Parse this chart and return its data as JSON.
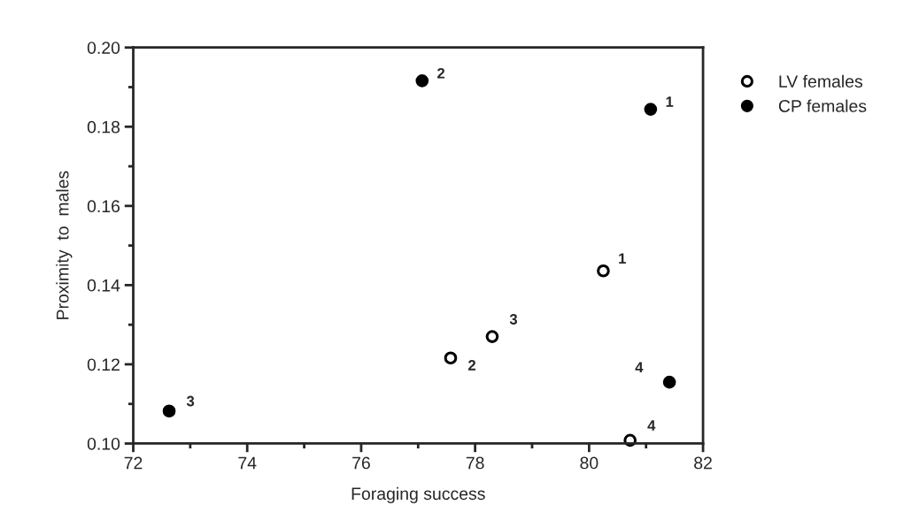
{
  "chart_data": {
    "type": "scatter",
    "xlabel": "Foraging success",
    "ylabel": "Proximity  to  males",
    "xlim": [
      72,
      82
    ],
    "xticks": [
      72,
      74,
      76,
      78,
      80,
      82
    ],
    "ylim": [
      0.1,
      0.2
    ],
    "yticks": [
      {
        "value": 0.1,
        "label": "0.10"
      },
      {
        "value": 0.12,
        "label": "0.12"
      },
      {
        "value": 0.14,
        "label": "0.14"
      },
      {
        "value": 0.16,
        "label": "0.16"
      },
      {
        "value": 0.18,
        "label": "0.18"
      },
      {
        "value": 0.2,
        "label": "0.20"
      }
    ],
    "grid": false,
    "legend": "right",
    "marker": "circle",
    "series": [
      {
        "name": "LV females",
        "color": "#000000",
        "x": [
          80.25,
          77.57,
          78.3,
          80.72
        ],
        "values": [
          0.1436,
          0.1216,
          0.127,
          0.1008
        ]
      },
      {
        "name": "CP females",
        "color": "#000000",
        "x": [
          81.08,
          77.07,
          72.63,
          81.41
        ],
        "values": [
          0.1844,
          0.1916,
          0.1082,
          0.1155
        ]
      }
    ],
    "annotations": [
      {
        "text": "1",
        "x": 80.25,
        "y": 0.1436
      },
      {
        "text": "2",
        "x": 77.57,
        "y": 0.1216
      },
      {
        "text": "3",
        "x": 78.3,
        "y": 0.127
      },
      {
        "text": "4",
        "x": 80.72,
        "y": 0.1008
      },
      {
        "text": "1",
        "x": 81.08,
        "y": 0.1844
      },
      {
        "text": "2",
        "x": 77.07,
        "y": 0.1916
      },
      {
        "text": "3",
        "x": 72.63,
        "y": 0.1082
      },
      {
        "text": "4",
        "x": 81.41,
        "y": 0.1155
      }
    ]
  }
}
